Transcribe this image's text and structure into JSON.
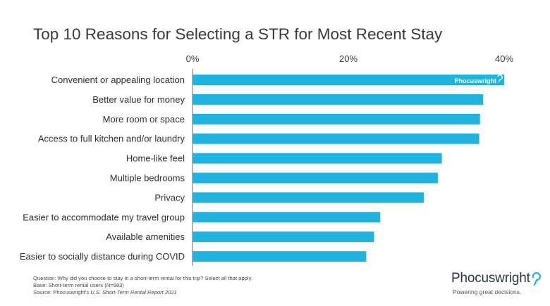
{
  "title": "Top 10 Reasons for Selecting a STR for Most Recent Stay",
  "colors": {
    "bar": "#1fb3e0",
    "axis": "#6b6b6b",
    "text": "#2f2f2f",
    "logo_accent": "#1fb3e0"
  },
  "watermark": "Phocuswright",
  "chart_data": {
    "type": "bar",
    "orientation": "horizontal",
    "title": "Top 10 Reasons for Selecting a STR for Most Recent Stay",
    "categories": [
      "Convenient or appealing location",
      "Better value for money",
      "More room or space",
      "Access to full kitchen and/or laundry",
      "Home-like feel",
      "Multiple bedrooms",
      "Privacy",
      "Easier to accommodate my travel group",
      "Available amenities",
      "Easier to socially distance during COVID"
    ],
    "values": [
      40.0,
      37.3,
      36.9,
      36.8,
      32.0,
      31.5,
      29.7,
      24.1,
      23.3,
      22.3
    ],
    "xlim": [
      0,
      40
    ],
    "xticks": [
      "0%",
      "20%",
      "40%"
    ],
    "xlabel": "",
    "ylabel": "",
    "grid": false
  },
  "notes": {
    "question": "Question: Why did you choose to stay in a short-term rental for this trip? Select all that apply.",
    "base": "Base: Short-term rental users (N=983)",
    "source_prefix": "Source: Phocuswright's ",
    "source_title": "U.S. Short-Term Rental Report 2021"
  },
  "logo": {
    "name": "Phocuswright",
    "tagline": "Powering great decisions."
  }
}
